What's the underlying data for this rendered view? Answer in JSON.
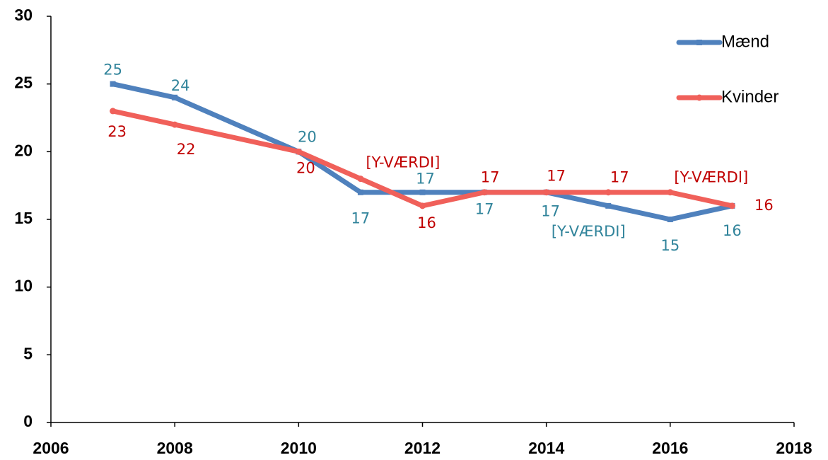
{
  "chart_data": {
    "type": "line",
    "x": [
      2007,
      2008,
      2010,
      2011,
      2012,
      2013,
      2014,
      2015,
      2016,
      2017
    ],
    "series": [
      {
        "name": "Mænd",
        "color": "#4f81bd",
        "label_color": "#31849b",
        "values": [
          25,
          24,
          20,
          17,
          17,
          17,
          17,
          16,
          15,
          16
        ],
        "value_labels": [
          "25",
          "24",
          "20",
          "17",
          "17",
          "17",
          "17",
          "[Y-VÆRDI]",
          "15",
          "16"
        ]
      },
      {
        "name": "Kvinder",
        "color": "#f0605a",
        "label_color": "#c00000",
        "values": [
          23,
          22,
          20,
          18,
          16,
          17,
          17,
          17,
          17,
          16
        ],
        "value_labels": [
          "23",
          "22",
          "20",
          "[Y-VÆRDI]",
          "16",
          "17",
          "17",
          "17",
          "[Y-VÆRDI]",
          "16"
        ]
      }
    ],
    "xlim": [
      2006,
      2018
    ],
    "xticks": [
      2006,
      2008,
      2010,
      2012,
      2014,
      2016,
      2018
    ],
    "ylim": [
      0,
      30
    ],
    "yticks": [
      0,
      5,
      10,
      15,
      20,
      25,
      30
    ],
    "grid": false,
    "legend": "top-right"
  }
}
